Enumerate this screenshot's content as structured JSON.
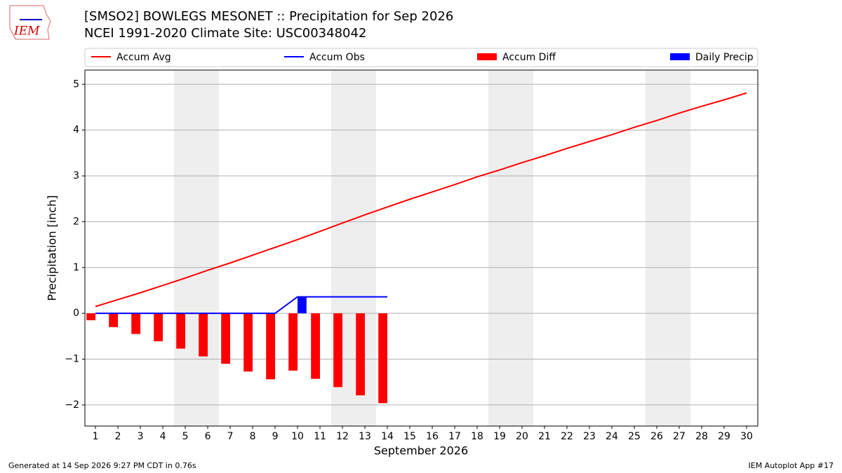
{
  "logo": "IEM",
  "chart_data": {
    "type": "bar_line",
    "title": "[SMSO2] BOWLEGS MESONET :: Precipitation for Sep 2026",
    "subtitle": "NCEI 1991-2020 Climate Site: USC00348042",
    "xlabel": "September 2026",
    "ylabel": "Precipitation [inch]",
    "x": [
      1,
      2,
      3,
      4,
      5,
      6,
      7,
      8,
      9,
      10,
      11,
      12,
      13,
      14,
      15,
      16,
      17,
      18,
      19,
      20,
      21,
      22,
      23,
      24,
      25,
      26,
      27,
      28,
      29,
      30
    ],
    "xlim": [
      0.53,
      30.5
    ],
    "xticks": [
      1,
      2,
      3,
      4,
      5,
      6,
      7,
      8,
      9,
      10,
      11,
      12,
      13,
      14,
      15,
      16,
      17,
      18,
      19,
      20,
      21,
      22,
      23,
      24,
      25,
      26,
      27,
      28,
      29,
      30
    ],
    "ylim": [
      -2.46,
      5.31
    ],
    "yticks": [
      {
        "value": -2,
        "label": "−2"
      },
      {
        "value": -1,
        "label": "−1"
      },
      0,
      1,
      2,
      3,
      4,
      5
    ],
    "grid": true,
    "weekend_spans": [
      [
        4.5,
        6.5
      ],
      [
        11.5,
        13.5
      ],
      [
        18.5,
        20.5
      ],
      [
        25.5,
        27.5
      ]
    ],
    "series": [
      {
        "name": "Accum Avg",
        "kind": "line",
        "color": "#ff0000",
        "values": [
          0.15,
          0.3,
          0.45,
          0.61,
          0.77,
          0.94,
          1.1,
          1.27,
          1.44,
          1.61,
          1.79,
          1.97,
          2.15,
          2.32,
          2.49,
          2.65,
          2.81,
          2.98,
          3.13,
          3.29,
          3.44,
          3.6,
          3.75,
          3.9,
          4.06,
          4.21,
          4.37,
          4.52,
          4.66,
          4.81
        ]
      },
      {
        "name": "Accum Obs",
        "kind": "line",
        "color": "#0000ff",
        "values": [
          0,
          0,
          0,
          0,
          0,
          0,
          0,
          0,
          0,
          0.36,
          0.36,
          0.36,
          0.36,
          0.36,
          null,
          null,
          null,
          null,
          null,
          null,
          null,
          null,
          null,
          null,
          null,
          null,
          null,
          null,
          null,
          null
        ]
      },
      {
        "name": "Accum Diff",
        "kind": "bar",
        "offset": -0.4,
        "color": "#ff0000",
        "values": [
          -0.15,
          -0.3,
          -0.45,
          -0.61,
          -0.77,
          -0.94,
          -1.1,
          -1.27,
          -1.44,
          -1.25,
          -1.43,
          -1.61,
          -1.79,
          -1.96,
          null,
          null,
          null,
          null,
          null,
          null,
          null,
          null,
          null,
          null,
          null,
          null,
          null,
          null,
          null,
          null
        ]
      },
      {
        "name": "Daily Precip",
        "kind": "bar",
        "offset": 0,
        "color": "#0000ff",
        "values": [
          0,
          0,
          0,
          0,
          0,
          0,
          0,
          0,
          0,
          0.36,
          0,
          0,
          0,
          0,
          null,
          null,
          null,
          null,
          null,
          null,
          null,
          null,
          null,
          null,
          null,
          null,
          null,
          null,
          null,
          null
        ]
      }
    ]
  },
  "footer": {
    "left": "Generated at 14 Sep 2026 9:27 PM CDT in 0.76s",
    "right": "IEM Autoplot App #17"
  }
}
